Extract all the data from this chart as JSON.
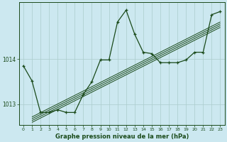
{
  "title": "Graphe pression niveau de la mer (hPa)",
  "bg_color": "#cce8f0",
  "grid_color": "#aacccc",
  "line_color": "#1a4a1a",
  "x_min": -0.5,
  "x_max": 23.5,
  "y_min": 1012.55,
  "y_max": 1015.25,
  "yticks": [
    1013,
    1014
  ],
  "xticks": [
    0,
    1,
    2,
    3,
    4,
    5,
    6,
    7,
    8,
    9,
    10,
    11,
    12,
    13,
    14,
    15,
    16,
    17,
    18,
    19,
    20,
    21,
    22,
    23
  ],
  "main_line_x": [
    0,
    1,
    2,
    3,
    4,
    5,
    6,
    7,
    8,
    9,
    10,
    11,
    12,
    13,
    14,
    15,
    16,
    17,
    18,
    19,
    20,
    21,
    22,
    23
  ],
  "main_line_y": [
    1013.85,
    1013.52,
    1012.82,
    1012.82,
    1012.88,
    1012.82,
    1012.82,
    1013.22,
    1013.5,
    1013.98,
    1013.98,
    1014.82,
    1015.08,
    1014.55,
    1014.15,
    1014.12,
    1013.92,
    1013.92,
    1013.92,
    1013.98,
    1014.15,
    1014.15,
    1014.98,
    1015.05
  ],
  "trend_lines": [
    {
      "x": [
        1,
        23
      ],
      "y": [
        1012.72,
        1014.82
      ]
    },
    {
      "x": [
        1,
        23
      ],
      "y": [
        1012.68,
        1014.78
      ]
    },
    {
      "x": [
        1,
        23
      ],
      "y": [
        1012.64,
        1014.74
      ]
    },
    {
      "x": [
        1,
        23
      ],
      "y": [
        1012.6,
        1014.7
      ]
    }
  ],
  "figwidth": 3.2,
  "figheight": 2.0,
  "dpi": 100
}
